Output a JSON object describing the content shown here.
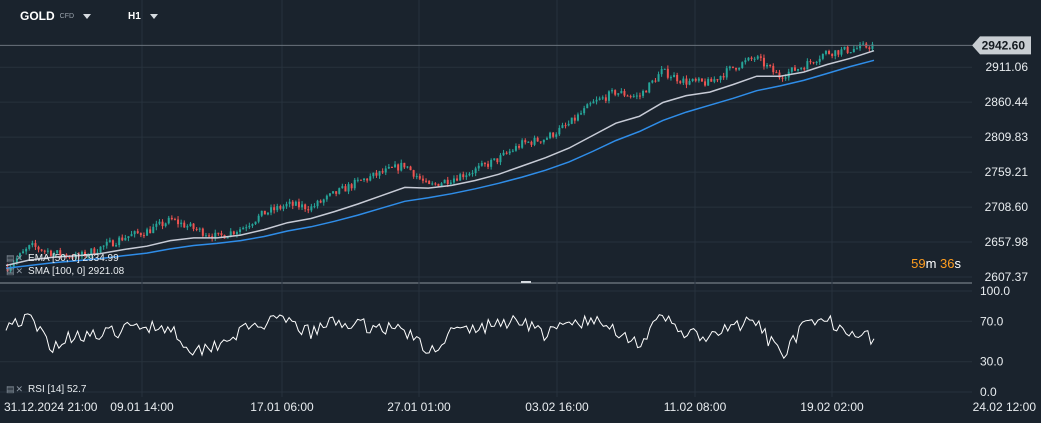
{
  "header": {
    "symbol": "GOLD",
    "symbol_tag": "CFD",
    "timeframe": "H1"
  },
  "indicators": {
    "ema": "EMA [50, 0] 2934.99",
    "sma": "SMA [100, 0] 2921.08",
    "rsi": "RSI [14] 52.7"
  },
  "countdown": {
    "minutes": "59",
    "m": "m",
    "seconds": "36",
    "s": "s"
  },
  "colors": {
    "background": "#1a232d",
    "grid": "#27323d",
    "up": "#26a69a",
    "down": "#ef5350",
    "ema": "#c7cbd6",
    "sma": "#2f8de8",
    "rsi": "#ffffff",
    "label_bg": "#c8cdd2"
  },
  "chart_data": [
    {
      "type": "candlestick",
      "title": "GOLD CFD H1",
      "timeframe": "H1",
      "x_ticks": [
        "31.12.2024  21:00",
        "09.01  14:00",
        "17.01  06:00",
        "27.01  01:00",
        "03.02  16:00",
        "11.02  08:00",
        "19.02  02:00",
        "24.02  12:00"
      ],
      "y_ticks": [
        2607.37,
        2657.98,
        2708.6,
        2759.21,
        2809.83,
        2860.44,
        2911.06
      ],
      "ylim": [
        2607.37,
        2962
      ],
      "last_price": 2942.6,
      "series": [
        {
          "name": "Price",
          "x": [
            "31.12.2024",
            "02.01",
            "03.01",
            "06.01",
            "07.01",
            "08.01",
            "09.01",
            "10.01",
            "13.01",
            "14.01",
            "15.01",
            "16.01",
            "17.01",
            "20.01",
            "21.01",
            "22.01",
            "23.01",
            "24.01",
            "27.01",
            "28.01",
            "29.01",
            "30.01",
            "31.01",
            "03.02",
            "04.02",
            "05.02",
            "06.02",
            "07.02",
            "10.02",
            "11.02",
            "12.02",
            "13.02",
            "14.02",
            "17.02",
            "18.02",
            "19.02",
            "20.02",
            "21.02"
          ],
          "values": [
            2622,
            2652,
            2642,
            2636,
            2650,
            2665,
            2674,
            2690,
            2677,
            2665,
            2678,
            2700,
            2712,
            2708,
            2728,
            2745,
            2758,
            2770,
            2738,
            2750,
            2762,
            2778,
            2800,
            2808,
            2828,
            2858,
            2875,
            2868,
            2905,
            2890,
            2888,
            2910,
            2925,
            2898,
            2912,
            2932,
            2936,
            2942.6
          ]
        },
        {
          "name": "EMA [50, 0]",
          "values": [
            2624,
            2632,
            2636,
            2638,
            2641,
            2647,
            2652,
            2660,
            2664,
            2664,
            2668,
            2676,
            2686,
            2692,
            2702,
            2713,
            2725,
            2737,
            2736,
            2740,
            2747,
            2756,
            2768,
            2780,
            2794,
            2812,
            2830,
            2840,
            2860,
            2870,
            2875,
            2886,
            2898,
            2898,
            2904,
            2915,
            2924,
            2934.99
          ]
        },
        {
          "name": "SMA [100, 0]",
          "values": [
            2620,
            2624,
            2628,
            2631,
            2634,
            2638,
            2642,
            2648,
            2653,
            2656,
            2660,
            2666,
            2674,
            2680,
            2688,
            2697,
            2707,
            2717,
            2722,
            2728,
            2735,
            2743,
            2752,
            2762,
            2774,
            2789,
            2805,
            2818,
            2834,
            2846,
            2856,
            2866,
            2877,
            2884,
            2892,
            2902,
            2912,
            2921.08
          ]
        }
      ]
    },
    {
      "type": "line",
      "title": "RSI [14] 52.7",
      "y_ticks": [
        0.0,
        30.0,
        70.0,
        100.0
      ],
      "ylim": [
        0,
        100
      ],
      "series": [
        {
          "name": "RSI [14]",
          "x": [
            "31.12.2024",
            "02.01",
            "03.01",
            "06.01",
            "07.01",
            "08.01",
            "09.01",
            "10.01",
            "13.01",
            "14.01",
            "15.01",
            "16.01",
            "17.01",
            "20.01",
            "21.01",
            "22.01",
            "23.01",
            "24.01",
            "27.01",
            "28.01",
            "29.01",
            "30.01",
            "31.01",
            "03.02",
            "04.02",
            "05.02",
            "06.02",
            "07.02",
            "10.02",
            "11.02",
            "12.02",
            "13.02",
            "14.02",
            "17.02",
            "18.02",
            "19.02",
            "20.02",
            "21.02"
          ],
          "values": [
            68,
            72,
            45,
            58,
            55,
            62,
            66,
            64,
            40,
            48,
            60,
            68,
            70,
            58,
            70,
            66,
            64,
            62,
            38,
            60,
            62,
            68,
            72,
            56,
            68,
            70,
            62,
            48,
            74,
            58,
            52,
            66,
            68,
            36,
            64,
            70,
            62,
            52.7
          ]
        }
      ]
    }
  ]
}
